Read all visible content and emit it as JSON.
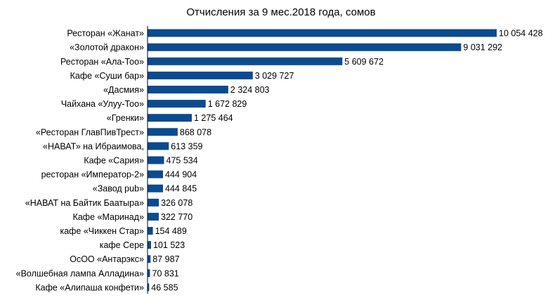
{
  "chart_data": {
    "type": "bar",
    "orientation": "horizontal",
    "title": "Отчисления за 9 мес.2018 года, сомов",
    "xlabel": "",
    "ylabel": "",
    "grid": false,
    "legend": "none",
    "bar_color": "#0b4b8f",
    "xlim": [
      0,
      10500000
    ],
    "categories": [
      "Ресторан «Жанат»",
      "«Золотой дракон»",
      "Ресторан «Ала-Тоо»",
      "Кафе «Суши бар»",
      "«Дасмия»",
      "Чайхана «Улуу-Тоо»",
      "«Гренки»",
      "«Ресторан ГлавПивТрест»",
      "«НАВАТ» на Ибраимова,",
      "Кафе «Сария»",
      "ресторан «Император-2»",
      "«Завод pub»",
      "«НАВАТ на Байтик Баатыра»",
      "Кафе «Маринад»",
      "кафе «Чиккен Стар»",
      "кафе Сере",
      "ОсОО «Антарэкс»",
      "«Волшебная лампа Алладина»",
      "Кафе «Алипаша конфети»"
    ],
    "values": [
      10054428,
      9031292,
      5609672,
      3029727,
      2324803,
      1672829,
      1275464,
      868078,
      613359,
      475534,
      444904,
      444845,
      326078,
      322770,
      154489,
      101523,
      87987,
      70831,
      46585
    ],
    "value_labels": [
      "10 054 428",
      "9 031 292",
      "5 609 672",
      "3 029 727",
      "2 324 803",
      "1 672 829",
      "1 275 464",
      "868 078",
      "613 359",
      "475 534",
      "444 904",
      "444 845",
      "326 078",
      "322 770",
      "154 489",
      "101 523",
      "87 987",
      "70 831",
      "46 585"
    ]
  }
}
